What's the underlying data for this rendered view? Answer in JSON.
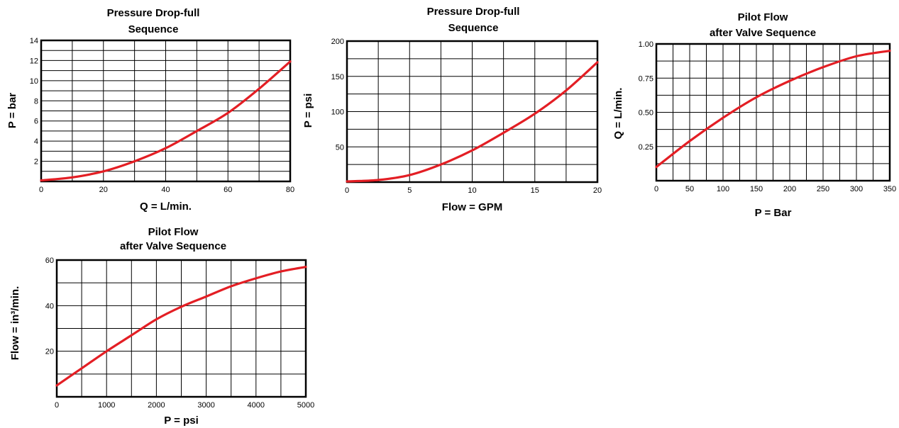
{
  "colors": {
    "curve": "#e31e24",
    "grid": "#000000",
    "background": "#ffffff"
  },
  "chart_data": [
    {
      "type": "line",
      "title": "Pressure Drop-full",
      "subtitle": "Sequence",
      "xlabel": "Q = L/min.",
      "ylabel": "P = bar",
      "xlim": [
        0,
        80
      ],
      "ylim": [
        0,
        14
      ],
      "xticks": [
        0,
        20,
        40,
        60,
        80
      ],
      "yticks": [
        2,
        4,
        6,
        8,
        10,
        12,
        14
      ],
      "grid": true,
      "series": [
        {
          "x": [
            0,
            10,
            20,
            30,
            40,
            50,
            60,
            70,
            80
          ],
          "y": [
            0.1,
            0.4,
            1.0,
            2.0,
            3.3,
            5.0,
            6.8,
            9.2,
            11.9
          ]
        }
      ]
    },
    {
      "type": "line",
      "title": "Pressure Drop-full",
      "subtitle": "Sequence",
      "xlabel": "Flow = GPM",
      "ylabel": "P = psi",
      "xlim": [
        0,
        20
      ],
      "ylim": [
        0,
        200
      ],
      "xticks": [
        0,
        5,
        10,
        15,
        20
      ],
      "yticks": [
        50,
        100,
        150,
        200
      ],
      "grid": true,
      "series": [
        {
          "x": [
            0,
            2.5,
            5,
            7.5,
            10,
            12.5,
            15,
            17.5,
            20
          ],
          "y": [
            1,
            3,
            10,
            25,
            45,
            70,
            97,
            130,
            170
          ]
        }
      ]
    },
    {
      "type": "line",
      "title": "Pilot Flow",
      "subtitle": "after Valve Sequence",
      "xlabel": "P = Bar",
      "ylabel": "Q = L/min.",
      "xlim": [
        0,
        350
      ],
      "ylim": [
        0,
        1.0
      ],
      "xticks": [
        0,
        50,
        100,
        150,
        200,
        250,
        300,
        350
      ],
      "yticks": [
        0.25,
        0.5,
        0.75,
        1.0
      ],
      "ytick_labels": [
        "0.25",
        "0.50",
        "0.75",
        "1.00"
      ],
      "grid": true,
      "series": [
        {
          "x": [
            0,
            50,
            100,
            150,
            200,
            250,
            300,
            350
          ],
          "y": [
            0.1,
            0.29,
            0.46,
            0.61,
            0.73,
            0.83,
            0.91,
            0.95
          ]
        }
      ]
    },
    {
      "type": "line",
      "title": "Pilot Flow",
      "subtitle": "after Valve Sequence",
      "xlabel": "P = psi",
      "ylabel": "Flow = in³/min.",
      "xlim": [
        0,
        5000
      ],
      "ylim": [
        0,
        60
      ],
      "xticks": [
        0,
        1000,
        2000,
        3000,
        4000,
        5000
      ],
      "yticks": [
        20,
        40,
        60
      ],
      "grid": true,
      "series": [
        {
          "x": [
            0,
            500,
            1000,
            1500,
            2000,
            2500,
            3000,
            3500,
            4000,
            4500,
            5000
          ],
          "y": [
            5,
            12.5,
            20,
            27,
            34,
            39.5,
            44,
            48.5,
            52,
            55,
            57
          ]
        }
      ]
    }
  ]
}
